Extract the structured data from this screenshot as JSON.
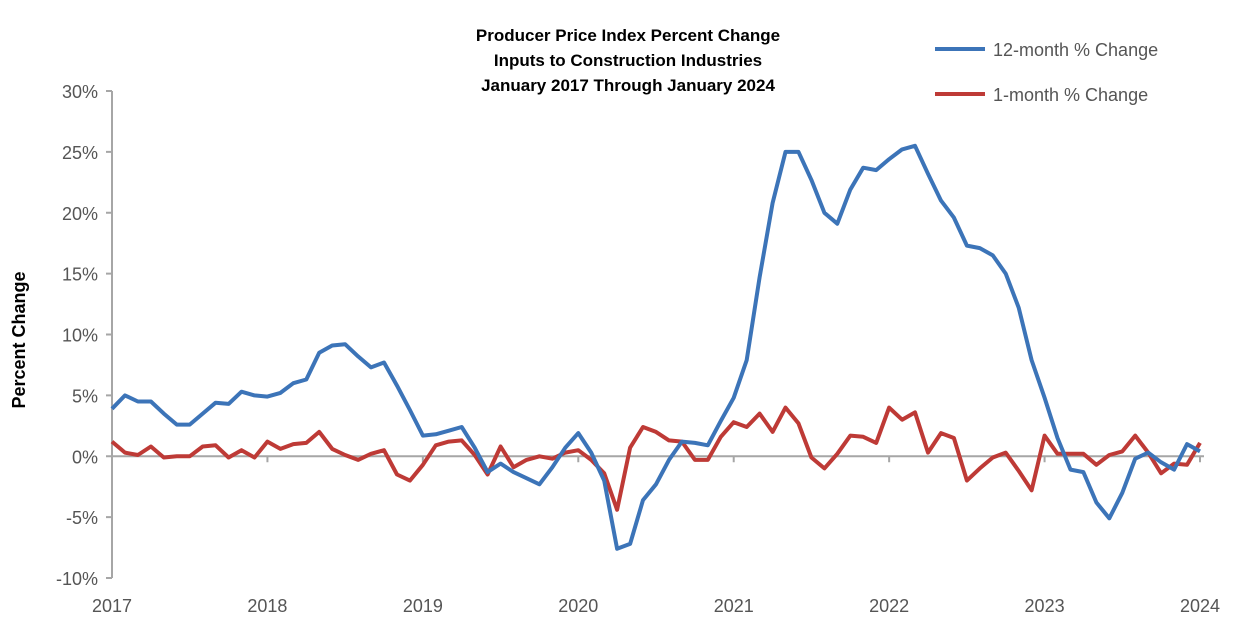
{
  "chart_data": {
    "type": "line",
    "title": [
      "Producer Price Index Percent Change",
      "Inputs to Construction Industries",
      "January 2017 Through January 2024"
    ],
    "xlabel": "",
    "ylabel": "Percent Change",
    "x_start": "2017-01",
    "x_frequency": "monthly",
    "x_tick_labels": [
      "2017",
      "2018",
      "2019",
      "2020",
      "2021",
      "2022",
      "2023",
      "2024"
    ],
    "y_tick_labels": [
      "-10%",
      "-5%",
      "0%",
      "5%",
      "10%",
      "15%",
      "20%",
      "25%",
      "30%"
    ],
    "ylim": [
      -10,
      30
    ],
    "grid": false,
    "legend_position": "top-right",
    "series": [
      {
        "name": "12-month % Change",
        "color": "#3c74b8",
        "values": [
          3.9,
          5.0,
          4.5,
          4.5,
          3.5,
          2.6,
          2.6,
          3.5,
          4.4,
          4.3,
          5.3,
          5.0,
          4.9,
          5.2,
          6.0,
          6.3,
          8.5,
          9.1,
          9.2,
          8.2,
          7.3,
          7.7,
          5.8,
          3.8,
          1.7,
          1.8,
          2.1,
          2.4,
          0.7,
          -1.3,
          -0.6,
          -1.3,
          -1.8,
          -2.3,
          -0.9,
          0.7,
          1.9,
          0.3,
          -2.0,
          -7.6,
          -7.2,
          -3.6,
          -2.3,
          -0.3,
          1.2,
          1.1,
          0.9,
          2.9,
          4.8,
          7.9,
          14.7,
          20.8,
          25.0,
          25.0,
          22.7,
          20.0,
          19.1,
          21.9,
          23.7,
          23.5,
          24.4,
          25.2,
          25.5,
          23.2,
          21.0,
          19.6,
          17.3,
          17.1,
          16.5,
          15.0,
          12.2,
          7.9,
          4.8,
          1.5,
          -1.1,
          -1.3,
          -3.8,
          -5.1,
          -3.0,
          -0.2,
          0.3,
          -0.5,
          -1.1,
          1.0,
          0.4
        ]
      },
      {
        "name": "1-month % Change",
        "color": "#be3a36",
        "values": [
          1.2,
          0.3,
          0.1,
          0.8,
          -0.1,
          0.0,
          0.0,
          0.8,
          0.9,
          -0.1,
          0.5,
          -0.1,
          1.2,
          0.6,
          1.0,
          1.1,
          2.0,
          0.6,
          0.1,
          -0.3,
          0.2,
          0.5,
          -1.5,
          -2.0,
          -0.7,
          0.9,
          1.2,
          1.3,
          0.1,
          -1.5,
          0.8,
          -0.9,
          -0.3,
          0.0,
          -0.2,
          0.3,
          0.5,
          -0.3,
          -1.4,
          -4.4,
          0.7,
          2.4,
          2.0,
          1.3,
          1.2,
          -0.3,
          -0.3,
          1.6,
          2.8,
          2.4,
          3.5,
          2.0,
          4.0,
          2.7,
          -0.1,
          -1.0,
          0.2,
          1.7,
          1.6,
          1.1,
          4.0,
          3.0,
          3.6,
          0.3,
          1.9,
          1.5,
          -2.0,
          -1.0,
          -0.1,
          0.3,
          -1.2,
          -2.8,
          1.7,
          0.2,
          0.2,
          0.2,
          -0.7,
          0.1,
          0.4,
          1.7,
          0.3,
          -1.4,
          -0.6,
          -0.7,
          1.1
        ]
      }
    ]
  }
}
